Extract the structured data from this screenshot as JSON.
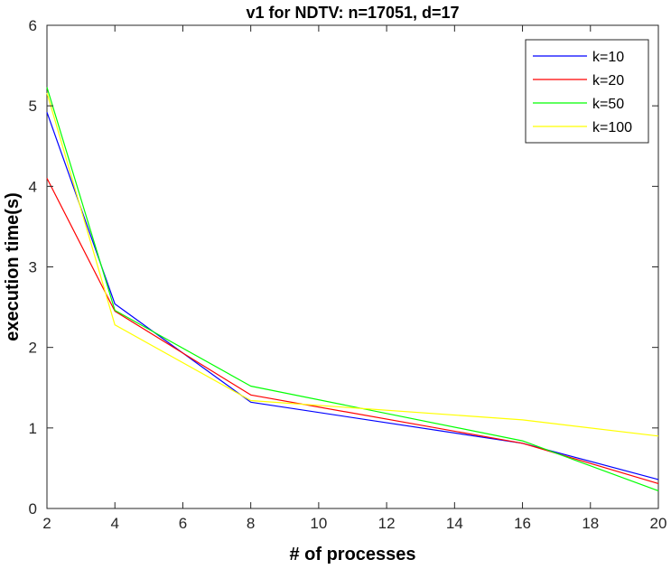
{
  "chart_data": {
    "type": "line",
    "title": "v1 for NDTV: n=17051, d=17",
    "xlabel": "# of processes",
    "ylabel": "execution time(s)",
    "xlim": [
      2,
      20
    ],
    "ylim": [
      0,
      6
    ],
    "xticks": [
      2,
      4,
      6,
      8,
      10,
      12,
      14,
      16,
      18,
      20
    ],
    "yticks": [
      0,
      1,
      2,
      3,
      4,
      5,
      6
    ],
    "x": [
      2,
      4,
      8,
      16,
      20
    ],
    "grid": false,
    "legend_position": "top-right",
    "series": [
      {
        "name": "k=10",
        "color": "#0000ff",
        "values": [
          4.92,
          2.54,
          1.32,
          0.81,
          0.36
        ]
      },
      {
        "name": "k=20",
        "color": "#ff0000",
        "values": [
          4.1,
          2.45,
          1.41,
          0.81,
          0.31
        ]
      },
      {
        "name": "k=50",
        "color": "#00ff00",
        "values": [
          5.23,
          2.46,
          1.52,
          0.84,
          0.22
        ]
      },
      {
        "name": "k=100",
        "color": "#ffff00",
        "values": [
          5.16,
          2.28,
          1.34,
          1.1,
          0.9
        ]
      }
    ]
  }
}
